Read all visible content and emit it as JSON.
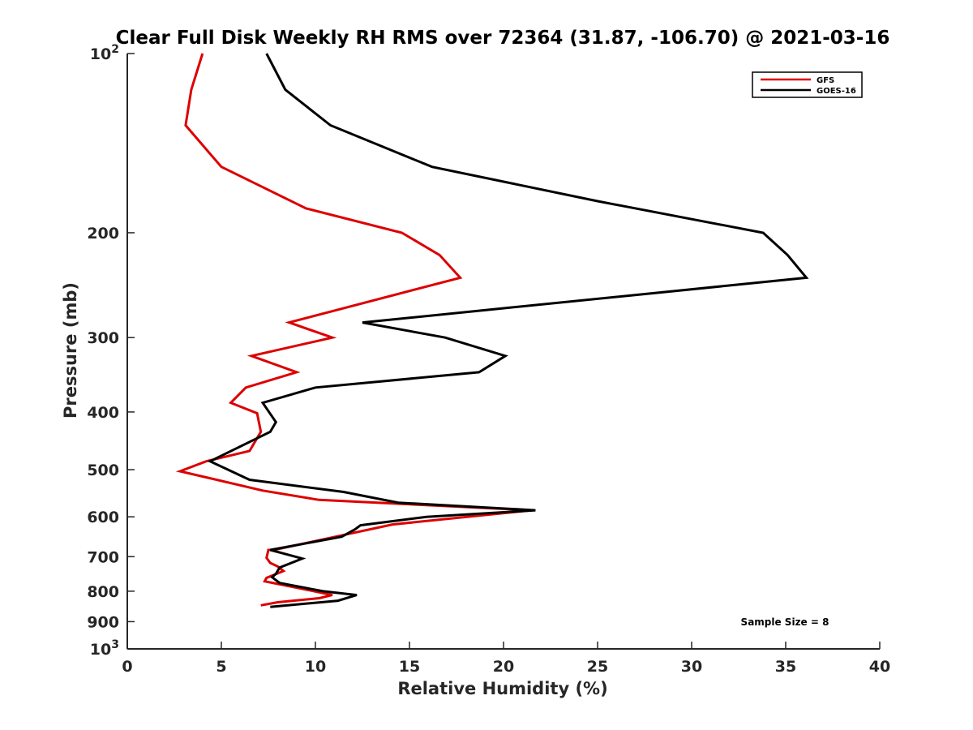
{
  "chart_data": {
    "type": "line",
    "title": "Clear Full Disk Weekly RH RMS over 72364 (31.87, -106.70) @ 2021-03-16",
    "xlabel": "Relative Humidity (%)",
    "ylabel": "Pressure (mb)",
    "xlim": [
      0,
      40
    ],
    "ylim": [
      100,
      1000
    ],
    "y_scale": "log",
    "y_reversed": true,
    "xticks": [
      0,
      5,
      10,
      15,
      20,
      25,
      30,
      35,
      40
    ],
    "yticks": [
      {
        "value": 100,
        "label": "10",
        "sup": "2"
      },
      {
        "value": 200,
        "label": "200",
        "sup": ""
      },
      {
        "value": 300,
        "label": "300",
        "sup": ""
      },
      {
        "value": 400,
        "label": "400",
        "sup": ""
      },
      {
        "value": 500,
        "label": "500",
        "sup": ""
      },
      {
        "value": 600,
        "label": "600",
        "sup": ""
      },
      {
        "value": 700,
        "label": "700",
        "sup": ""
      },
      {
        "value": 800,
        "label": "800",
        "sup": ""
      },
      {
        "value": 900,
        "label": "900",
        "sup": ""
      },
      {
        "value": 1000,
        "label": "10",
        "sup": "3"
      }
    ],
    "grid": false,
    "legend_position": "top-right",
    "annotation": "Sample Size = 8",
    "series": [
      {
        "name": "GFS",
        "color": "#dd0000",
        "points": [
          [
            4.0,
            100
          ],
          [
            3.4,
            115
          ],
          [
            3.1,
            132
          ],
          [
            5.0,
            155
          ],
          [
            9.5,
            182
          ],
          [
            14.6,
            200
          ],
          [
            16.6,
            218
          ],
          [
            17.7,
            238
          ],
          [
            8.6,
            283
          ],
          [
            10.9,
            300
          ],
          [
            6.6,
            322
          ],
          [
            9.0,
            343
          ],
          [
            6.3,
            364
          ],
          [
            5.5,
            386
          ],
          [
            6.9,
            402
          ],
          [
            7.1,
            432
          ],
          [
            6.5,
            465
          ],
          [
            4.2,
            484
          ],
          [
            2.8,
            503
          ],
          [
            7.2,
            542
          ],
          [
            10.2,
            562
          ],
          [
            21.5,
            585
          ],
          [
            14.1,
            618
          ],
          [
            7.8,
            682
          ],
          [
            7.5,
            682
          ],
          [
            7.4,
            703
          ],
          [
            7.6,
            717
          ],
          [
            8.0,
            727
          ],
          [
            8.3,
            740
          ],
          [
            7.4,
            760
          ],
          [
            7.3,
            770
          ],
          [
            9.5,
            795
          ],
          [
            10.9,
            812
          ],
          [
            10.2,
            822
          ],
          [
            8.0,
            835
          ],
          [
            7.1,
            845
          ]
        ]
      },
      {
        "name": "GOES-16",
        "color": "#000000",
        "points": [
          [
            7.4,
            100
          ],
          [
            8.4,
            115
          ],
          [
            10.8,
            132
          ],
          [
            16.2,
            155
          ],
          [
            25.0,
            177
          ],
          [
            33.8,
            200
          ],
          [
            35.1,
            218
          ],
          [
            36.1,
            238
          ],
          [
            12.5,
            283
          ],
          [
            16.9,
            300
          ],
          [
            20.1,
            322
          ],
          [
            18.7,
            343
          ],
          [
            10.0,
            364
          ],
          [
            7.2,
            386
          ],
          [
            7.9,
            416
          ],
          [
            7.6,
            432
          ],
          [
            4.4,
            484
          ],
          [
            6.5,
            520
          ],
          [
            11.5,
            545
          ],
          [
            14.4,
            568
          ],
          [
            21.7,
            585
          ],
          [
            15.9,
            600
          ],
          [
            12.4,
            620
          ],
          [
            12.1,
            630
          ],
          [
            11.4,
            648
          ],
          [
            7.6,
            682
          ],
          [
            9.3,
            705
          ],
          [
            8.1,
            730
          ],
          [
            7.9,
            748
          ],
          [
            7.7,
            758
          ],
          [
            8.1,
            775
          ],
          [
            10.4,
            800
          ],
          [
            12.2,
            812
          ],
          [
            11.2,
            830
          ],
          [
            7.6,
            850
          ]
        ]
      }
    ]
  }
}
